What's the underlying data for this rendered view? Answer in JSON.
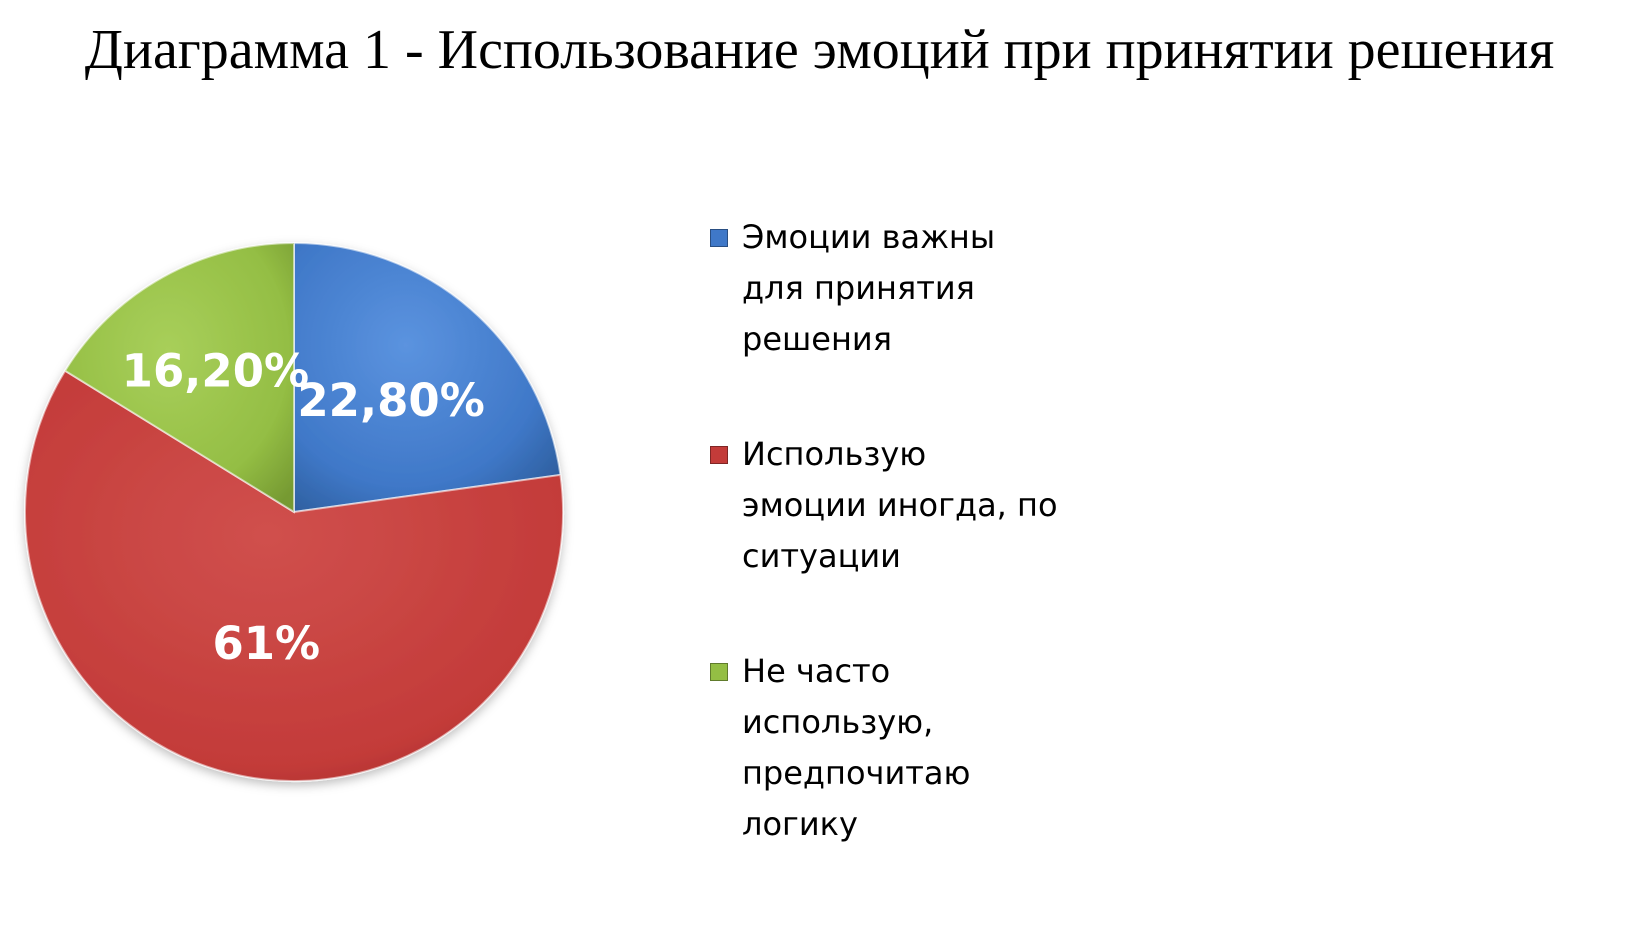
{
  "chart_data": {
    "type": "pie",
    "title": "Диаграмма 1 - Использование эмоций при принятии решения",
    "slices": [
      {
        "label": "Эмоции важны для принятия решения",
        "value": 22.8,
        "display": "22,80%",
        "color": "#3f78c8"
      },
      {
        "label": "Использую эмоции иногда, по ситуации",
        "value": 61,
        "display": "61%",
        "color": "#c33b39"
      },
      {
        "label": "Не часто использую, предпочитаю логику",
        "value": 16.2,
        "display": "16,20%",
        "color": "#94be44"
      }
    ],
    "legend_position": "right"
  },
  "legend": {
    "items": [
      {
        "lines": [
          "Эмоции важны",
          "для принятия",
          "решения"
        ]
      },
      {
        "lines": [
          "Использую",
          "эмоции иногда, по",
          "ситуации"
        ]
      },
      {
        "lines": [
          "Не часто",
          "использую,",
          "предпочитаю",
          "логику"
        ]
      }
    ]
  }
}
